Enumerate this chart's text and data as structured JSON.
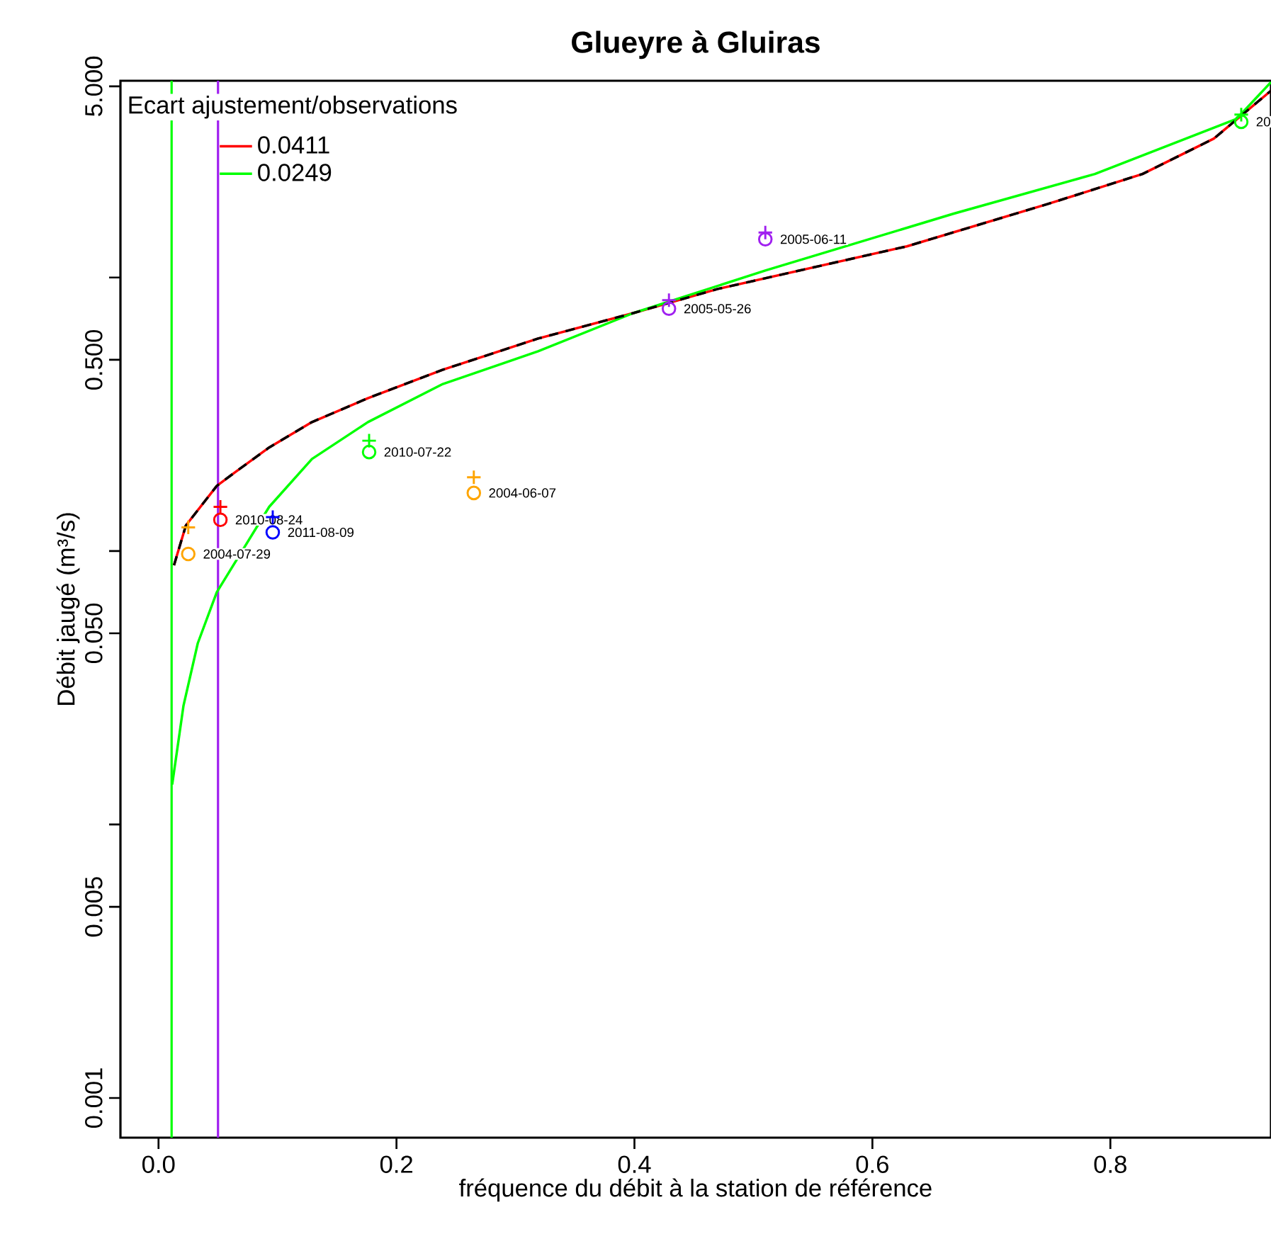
{
  "chart_data": {
    "type": "line",
    "title": "Glueyre à Gluiras",
    "xlabel": "fréquence du débit à la station de référence",
    "ylabel": "Débit jaugé (m³/s)",
    "legend_title": "Ecart ajustement/observations",
    "legend": "top left",
    "log": "y",
    "grid": false,
    "xlim": [
      -0.032,
      0.935
    ],
    "ylim": [
      0.000716,
      5.24
    ],
    "xticks": [
      {
        "value": 0,
        "label": "0.0"
      },
      {
        "value": 0.2,
        "label": "0.2"
      },
      {
        "value": 0.4,
        "label": "0.4"
      },
      {
        "value": 0.6,
        "label": "0.6"
      },
      {
        "value": 0.8,
        "label": "0.8"
      }
    ],
    "yticks": [
      {
        "value": 0.001,
        "label": "0.001"
      },
      {
        "value": 0.005,
        "label": "0.005"
      },
      {
        "value": 0.01,
        "label": null
      },
      {
        "value": 0.05,
        "label": "0.050"
      },
      {
        "value": 0.1,
        "label": null
      },
      {
        "value": 0.5,
        "label": "0.500"
      },
      {
        "value": 1,
        "label": null
      },
      {
        "value": 5,
        "label": "5.000"
      }
    ],
    "series": [
      {
        "name": "0.0411",
        "color": "#ff0000",
        "line_style": "solid",
        "x": [
          0.013,
          0.023,
          0.049,
          0.065,
          0.093,
          0.129,
          0.176,
          0.239,
          0.319,
          0.399,
          0.47,
          0.629,
          0.748,
          0.827,
          0.887,
          0.935
        ],
        "values": [
          0.0887,
          0.124,
          0.173,
          0.195,
          0.239,
          0.296,
          0.362,
          0.46,
          0.598,
          0.741,
          0.908,
          1.3,
          1.86,
          2.39,
          3.22,
          4.82
        ]
      },
      {
        "name": "0.0249",
        "color": "#00ff00",
        "line_style": "solid",
        "x": [
          0.0115,
          0.021,
          0.033,
          0.049,
          0.093,
          0.129,
          0.176,
          0.239,
          0.319,
          0.399,
          0.51,
          0.668,
          0.787,
          0.906,
          0.935
        ],
        "values": [
          0.014,
          0.0272,
          0.046,
          0.0707,
          0.145,
          0.217,
          0.296,
          0.408,
          0.537,
          0.741,
          1.06,
          1.71,
          2.39,
          3.8,
          5.18
        ]
      },
      {
        "color": "#000000",
        "line_style": "dashed",
        "x": [
          0.013,
          0.023,
          0.049,
          0.065,
          0.093,
          0.129,
          0.176,
          0.239,
          0.319,
          0.399,
          0.47,
          0.629,
          0.748,
          0.827,
          0.887,
          0.935
        ],
        "values": [
          0.0887,
          0.124,
          0.173,
          0.195,
          0.239,
          0.296,
          0.362,
          0.46,
          0.598,
          0.741,
          0.908,
          1.3,
          1.86,
          2.39,
          3.22,
          4.82
        ]
      },
      {
        "type": "scatter",
        "marker": "circle",
        "x": [
          0.025,
          0.052,
          0.096,
          0.177,
          0.265,
          0.429,
          0.51,
          0.91
        ],
        "values": [
          0.0975,
          0.13,
          0.117,
          0.23,
          0.163,
          0.769,
          1.38,
          3.71
        ],
        "colors": [
          "#ffa500",
          "#ff0000",
          "#0000ff",
          "#00ff00",
          "#ffa500",
          "#a020f0",
          "#a020f0",
          "#00ff00"
        ]
      },
      {
        "type": "scatter",
        "marker": "cross",
        "x": [
          0.025,
          0.052,
          0.096,
          0.177,
          0.265,
          0.429,
          0.51,
          0.91
        ],
        "values": [
          0.122,
          0.145,
          0.133,
          0.253,
          0.186,
          0.826,
          1.46,
          3.94
        ],
        "colors": [
          "#ffa500",
          "#ff0000",
          "#0000ff",
          "#00ff00",
          "#ffa500",
          "#a020f0",
          "#a020f0",
          "#00ff00"
        ]
      }
    ],
    "ref_lines": [
      {
        "axis": "x",
        "value": 0.011,
        "color": "#00ff00"
      },
      {
        "axis": "x",
        "value": 0.05,
        "color": "#a020f0"
      }
    ],
    "annotations": [
      {
        "text": "2004-07-29",
        "x": 0.025,
        "y": 0.0975
      },
      {
        "text": "2010-08-24",
        "x": 0.052,
        "y": 0.13
      },
      {
        "text": "2011-08-09",
        "x": 0.096,
        "y": 0.117
      },
      {
        "text": "2010-07-22",
        "x": 0.177,
        "y": 0.23
      },
      {
        "text": "2004-06-07",
        "x": 0.265,
        "y": 0.163
      },
      {
        "text": "2005-05-26",
        "x": 0.429,
        "y": 0.769
      },
      {
        "text": "2005-06-11",
        "x": 0.51,
        "y": 1.38
      },
      {
        "text": "20",
        "x": 0.91,
        "y": 3.71
      }
    ]
  }
}
